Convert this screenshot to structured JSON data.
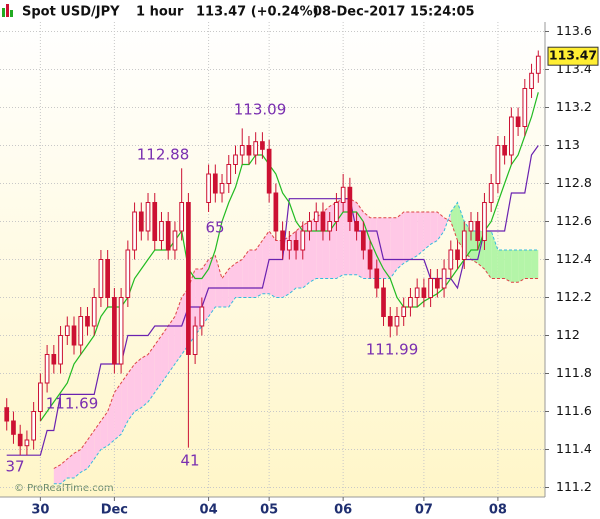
{
  "chart_data": {
    "type": "candlestick",
    "title": "Spot USD/JPY",
    "timeframe": "1 hour",
    "quote": "113.47 (+0.24%)",
    "timestamp": "08-Dec-2017 15:24:05",
    "watermark": "© ProRealTime.com",
    "color": "#cc1133",
    "grid": true,
    "ylim": [
      111.15,
      113.65
    ],
    "yticks": [
      111.2,
      111.4,
      111.6,
      111.8,
      112,
      112.2,
      112.4,
      112.6,
      112.8,
      113,
      113.2,
      113.4,
      113.6
    ],
    "xlim": [
      -1,
      80
    ],
    "xticks": [
      {
        "value": 5,
        "label": "30"
      },
      {
        "value": 16,
        "label": "Dec"
      },
      {
        "value": 30,
        "label": "04"
      },
      {
        "value": 39,
        "label": "05"
      },
      {
        "value": 50,
        "label": "06"
      },
      {
        "value": 62,
        "label": "07"
      },
      {
        "value": 73,
        "label": "08"
      }
    ],
    "x": [
      0,
      1,
      2,
      3,
      4,
      5,
      6,
      7,
      8,
      9,
      10,
      11,
      12,
      13,
      14,
      15,
      16,
      17,
      18,
      19,
      20,
      21,
      22,
      23,
      24,
      25,
      26,
      27,
      28,
      29,
      30,
      31,
      32,
      33,
      34,
      35,
      36,
      37,
      38,
      39,
      40,
      41,
      42,
      43,
      44,
      45,
      46,
      47,
      48,
      49,
      50,
      51,
      52,
      53,
      54,
      55,
      56,
      57,
      58,
      59,
      60,
      61,
      62,
      63,
      64,
      65,
      66,
      67,
      68,
      69,
      70,
      71,
      72,
      73,
      74,
      75,
      76,
      77,
      78,
      79
    ],
    "open": [
      111.62,
      111.55,
      111.48,
      111.42,
      111.45,
      111.6,
      111.75,
      111.9,
      111.85,
      112.0,
      112.05,
      111.95,
      112.1,
      112.05,
      112.2,
      112.4,
      112.2,
      111.85,
      112.2,
      112.45,
      112.65,
      112.55,
      112.7,
      112.5,
      112.6,
      112.45,
      112.55,
      112.7,
      111.9,
      112.05,
      112.7,
      112.85,
      112.75,
      112.8,
      112.9,
      112.95,
      113.0,
      112.95,
      113.02,
      112.98,
      112.75,
      112.55,
      112.45,
      112.5,
      112.45,
      112.55,
      112.6,
      112.65,
      112.55,
      112.6,
      112.7,
      112.78,
      112.6,
      112.55,
      112.45,
      112.35,
      112.25,
      112.1,
      112.05,
      112.1,
      112.15,
      112.2,
      112.25,
      112.2,
      112.3,
      112.25,
      112.35,
      112.45,
      112.4,
      112.55,
      112.6,
      112.5,
      112.7,
      112.8,
      113.0,
      112.95,
      113.15,
      113.1,
      113.3,
      113.38
    ],
    "high": [
      111.67,
      111.6,
      111.53,
      111.5,
      111.65,
      111.8,
      111.95,
      111.95,
      112.05,
      112.1,
      112.1,
      112.15,
      112.15,
      112.25,
      112.45,
      112.45,
      112.25,
      112.25,
      112.5,
      112.7,
      112.7,
      112.75,
      112.75,
      112.65,
      112.65,
      112.6,
      112.88,
      112.75,
      112.1,
      112.2,
      112.9,
      112.9,
      112.85,
      112.95,
      113.0,
      113.09,
      113.05,
      113.07,
      113.07,
      113.03,
      112.8,
      112.6,
      112.55,
      112.55,
      112.6,
      112.65,
      112.7,
      112.7,
      112.65,
      112.75,
      112.85,
      112.83,
      112.65,
      112.6,
      112.5,
      112.4,
      112.3,
      112.15,
      112.15,
      112.2,
      112.25,
      112.3,
      112.3,
      112.35,
      112.35,
      112.4,
      112.5,
      112.5,
      112.6,
      112.65,
      112.65,
      112.75,
      112.85,
      113.05,
      113.05,
      113.2,
      113.2,
      113.35,
      113.43,
      113.5
    ],
    "low": [
      111.5,
      111.43,
      111.37,
      111.37,
      111.4,
      111.55,
      111.7,
      111.8,
      111.8,
      111.95,
      111.9,
      111.9,
      112.0,
      112.0,
      112.15,
      112.15,
      111.8,
      111.8,
      112.15,
      112.4,
      112.5,
      112.5,
      112.45,
      112.45,
      112.4,
      112.4,
      112.5,
      111.41,
      111.85,
      112.0,
      112.65,
      112.7,
      112.7,
      112.75,
      112.85,
      112.9,
      112.9,
      112.9,
      112.93,
      112.7,
      112.5,
      112.4,
      112.4,
      112.4,
      112.4,
      112.5,
      112.55,
      112.5,
      112.5,
      112.55,
      112.65,
      112.55,
      112.5,
      112.4,
      112.3,
      112.2,
      112.05,
      111.99,
      112.0,
      112.05,
      112.1,
      112.15,
      112.15,
      112.15,
      112.2,
      112.2,
      112.3,
      112.35,
      112.35,
      112.5,
      112.45,
      112.45,
      112.65,
      112.75,
      112.9,
      112.9,
      113.05,
      113.05,
      113.25,
      113.33
    ],
    "close": [
      111.55,
      111.48,
      111.42,
      111.45,
      111.6,
      111.75,
      111.9,
      111.85,
      112.0,
      112.05,
      111.95,
      112.1,
      112.05,
      112.2,
      112.4,
      112.2,
      111.85,
      112.2,
      112.45,
      112.65,
      112.55,
      112.7,
      112.5,
      112.6,
      112.45,
      112.55,
      112.7,
      111.9,
      112.05,
      112.15,
      112.85,
      112.75,
      112.8,
      112.9,
      112.95,
      113.0,
      112.95,
      113.02,
      112.98,
      112.75,
      112.55,
      112.45,
      112.5,
      112.45,
      112.55,
      112.6,
      112.65,
      112.55,
      112.6,
      112.7,
      112.78,
      112.6,
      112.55,
      112.45,
      112.35,
      112.25,
      112.1,
      112.05,
      112.1,
      112.15,
      112.2,
      112.25,
      112.2,
      112.3,
      112.25,
      112.35,
      112.45,
      112.4,
      112.55,
      112.6,
      112.5,
      112.7,
      112.8,
      113.0,
      112.95,
      113.15,
      113.1,
      113.3,
      113.38,
      113.47
    ],
    "tenkan": {
      "color": "#22bb22",
      "values": [
        null,
        null,
        null,
        null,
        null,
        111.55,
        111.6,
        111.65,
        111.7,
        111.75,
        111.85,
        111.9,
        111.95,
        112.0,
        112.1,
        112.15,
        112.15,
        112.15,
        112.2,
        112.3,
        112.35,
        112.4,
        112.45,
        112.45,
        112.45,
        112.5,
        112.55,
        112.35,
        112.3,
        112.3,
        112.35,
        112.45,
        112.6,
        112.7,
        112.78,
        112.9,
        112.9,
        112.95,
        112.95,
        112.9,
        112.85,
        112.75,
        112.7,
        112.6,
        112.55,
        112.55,
        112.55,
        112.55,
        112.55,
        112.6,
        112.65,
        112.65,
        112.65,
        112.6,
        112.5,
        112.42,
        112.35,
        112.3,
        112.2,
        112.15,
        112.15,
        112.15,
        112.18,
        112.2,
        112.22,
        112.25,
        112.3,
        112.35,
        112.4,
        112.45,
        112.45,
        112.55,
        112.6,
        112.7,
        112.8,
        112.9,
        112.95,
        113.05,
        113.15,
        113.28
      ]
    },
    "kijun": {
      "color": "#6a22b0",
      "values": [
        111.37,
        111.37,
        111.37,
        111.37,
        111.37,
        111.37,
        111.5,
        111.5,
        111.69,
        111.69,
        111.69,
        111.69,
        111.69,
        111.69,
        111.85,
        111.85,
        111.85,
        111.85,
        112.0,
        112.0,
        112.0,
        112.0,
        112.05,
        112.05,
        112.05,
        112.05,
        112.05,
        112.15,
        112.15,
        112.15,
        112.25,
        112.25,
        112.25,
        112.25,
        112.25,
        112.25,
        112.25,
        112.25,
        112.25,
        112.4,
        112.4,
        112.4,
        112.72,
        112.72,
        112.72,
        112.72,
        112.72,
        112.72,
        112.72,
        112.72,
        112.72,
        112.72,
        112.55,
        112.55,
        112.55,
        112.55,
        112.4,
        112.4,
        112.4,
        112.4,
        112.4,
        112.4,
        112.4,
        112.3,
        112.3,
        112.3,
        112.3,
        112.25,
        112.4,
        112.4,
        112.4,
        112.55,
        112.55,
        112.55,
        112.55,
        112.75,
        112.75,
        112.75,
        112.95,
        113.0
      ]
    },
    "span_a": {
      "color": "#33bbdd",
      "values": [
        null,
        null,
        null,
        null,
        null,
        null,
        null,
        111.22,
        111.22,
        111.25,
        111.25,
        111.28,
        111.3,
        111.35,
        111.4,
        111.42,
        111.45,
        111.48,
        111.55,
        111.6,
        111.62,
        111.65,
        111.7,
        111.75,
        111.8,
        111.85,
        111.9,
        111.95,
        112.0,
        112.05,
        112.1,
        112.15,
        112.15,
        112.15,
        112.2,
        112.2,
        112.2,
        112.2,
        112.22,
        112.22,
        112.2,
        112.2,
        112.22,
        112.25,
        112.25,
        112.28,
        112.3,
        112.3,
        112.3,
        112.3,
        112.32,
        112.32,
        112.32,
        112.3,
        112.3,
        112.3,
        112.3,
        112.3,
        112.35,
        112.38,
        112.4,
        112.42,
        112.45,
        112.48,
        112.5,
        112.55,
        112.65,
        112.7,
        112.6,
        112.55,
        112.55,
        112.55,
        112.55,
        112.45,
        112.45,
        112.45,
        112.45,
        112.45,
        112.45,
        112.45
      ]
    },
    "span_b": {
      "color": "#dd4444",
      "values": [
        null,
        null,
        null,
        null,
        null,
        null,
        null,
        111.3,
        111.32,
        111.35,
        111.38,
        111.4,
        111.45,
        111.5,
        111.55,
        111.6,
        111.7,
        111.75,
        111.8,
        111.85,
        111.88,
        111.9,
        111.95,
        112.0,
        112.05,
        112.1,
        112.2,
        112.25,
        112.35,
        112.35,
        112.4,
        112.42,
        112.3,
        112.35,
        112.38,
        112.4,
        112.45,
        112.45,
        112.5,
        112.55,
        112.5,
        112.5,
        112.52,
        112.55,
        112.58,
        112.6,
        112.62,
        112.65,
        112.68,
        112.7,
        112.72,
        112.72,
        112.7,
        112.65,
        112.62,
        112.62,
        112.62,
        112.62,
        112.62,
        112.65,
        112.65,
        112.65,
        112.65,
        112.65,
        112.65,
        112.62,
        112.6,
        112.5,
        112.45,
        112.4,
        112.38,
        112.35,
        112.3,
        112.3,
        112.3,
        112.28,
        112.28,
        112.3,
        112.3,
        112.3
      ]
    },
    "cloud_colors": {
      "bearish": "#ffc8e6",
      "bullish": "#b4f5a8"
    },
    "annotations": [
      "113.09",
      "112.88",
      "111.69",
      "111.99",
      "37",
      "41",
      "65"
    ]
  }
}
